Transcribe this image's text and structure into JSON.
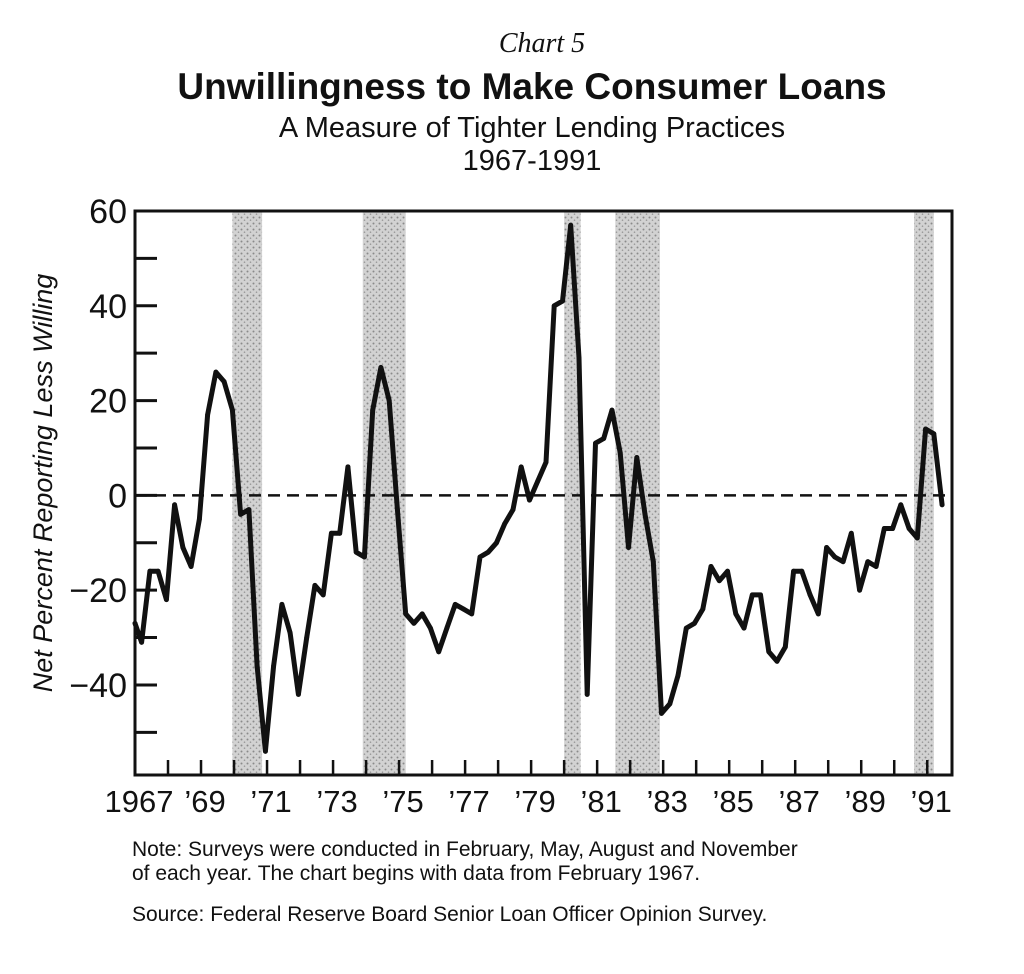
{
  "header": {
    "label": "Chart 5",
    "title": "Unwillingness to Make Consumer Loans",
    "subtitle": "A Measure of Tighter Lending Practices",
    "years": "1967-1991"
  },
  "footer": {
    "note_line1": "Note:  Surveys were conducted in February, May, August and November",
    "note_line2": "of each year. The chart begins with data from February 1967.",
    "source": "Source:  Federal Reserve Board Senior Loan Officer Opinion Survey."
  },
  "colors": {
    "line": "#111111",
    "shading": "#bdbdbd"
  },
  "chart_data": {
    "type": "line",
    "ylabel": "Net Percent Reporting Less Willing",
    "xlabel": "",
    "ylim": [
      -59,
      60
    ],
    "xlim": [
      1967.0,
      1991.75
    ],
    "grid": false,
    "legend": "none",
    "zero_line": "dashed",
    "yticks": [
      {
        "value": 60,
        "label": "60"
      },
      {
        "value": 40,
        "label": "40"
      },
      {
        "value": 20,
        "label": "20"
      },
      {
        "value": 0,
        "label": "0"
      },
      {
        "value": -20,
        "label": "−20"
      },
      {
        "value": -40,
        "label": "−40"
      }
    ],
    "minor_yticks": [
      50,
      30,
      10,
      -10,
      -30,
      -50
    ],
    "xticks": [
      {
        "value": 1967.0,
        "label": "1967"
      },
      {
        "value": 1969.0,
        "label": "’69"
      },
      {
        "value": 1971.0,
        "label": "’71"
      },
      {
        "value": 1973.0,
        "label": "’73"
      },
      {
        "value": 1975.0,
        "label": "’75"
      },
      {
        "value": 1977.0,
        "label": "’77"
      },
      {
        "value": 1979.0,
        "label": "’79"
      },
      {
        "value": 1981.0,
        "label": "’81"
      },
      {
        "value": 1983.0,
        "label": "’83"
      },
      {
        "value": 1985.0,
        "label": "’85"
      },
      {
        "value": 1987.0,
        "label": "’87"
      },
      {
        "value": 1989.0,
        "label": "’89"
      },
      {
        "value": 1991.0,
        "label": "’91"
      }
    ],
    "recessions": [
      [
        1969.95,
        1970.85
      ],
      [
        1973.9,
        1975.2
      ],
      [
        1980.0,
        1980.5
      ],
      [
        1981.55,
        1982.9
      ],
      [
        1990.6,
        1991.2
      ]
    ],
    "series": [
      {
        "values": [
          [
            1967.0,
            -27
          ],
          [
            1967.2,
            -31
          ],
          [
            1967.45,
            -16
          ],
          [
            1967.7,
            -16
          ],
          [
            1967.95,
            -22
          ],
          [
            1968.2,
            -2
          ],
          [
            1968.45,
            -11
          ],
          [
            1968.7,
            -15
          ],
          [
            1968.95,
            -5
          ],
          [
            1969.2,
            17
          ],
          [
            1969.45,
            26
          ],
          [
            1969.7,
            24
          ],
          [
            1969.95,
            18
          ],
          [
            1970.2,
            -4
          ],
          [
            1970.45,
            -3
          ],
          [
            1970.7,
            -36
          ],
          [
            1970.95,
            -54
          ],
          [
            1971.2,
            -36
          ],
          [
            1971.45,
            -23
          ],
          [
            1971.7,
            -29
          ],
          [
            1971.95,
            -42
          ],
          [
            1972.2,
            -30
          ],
          [
            1972.45,
            -19
          ],
          [
            1972.7,
            -21
          ],
          [
            1972.95,
            -8
          ],
          [
            1973.2,
            -8
          ],
          [
            1973.45,
            6
          ],
          [
            1973.7,
            -12
          ],
          [
            1973.95,
            -13
          ],
          [
            1974.2,
            18
          ],
          [
            1974.45,
            27
          ],
          [
            1974.7,
            20
          ],
          [
            1974.95,
            -3
          ],
          [
            1975.2,
            -25
          ],
          [
            1975.45,
            -27
          ],
          [
            1975.7,
            -25
          ],
          [
            1975.95,
            -28
          ],
          [
            1976.2,
            -33
          ],
          [
            1976.45,
            -28
          ],
          [
            1976.7,
            -23
          ],
          [
            1976.95,
            -24
          ],
          [
            1977.2,
            -25
          ],
          [
            1977.45,
            -13
          ],
          [
            1977.7,
            -12
          ],
          [
            1977.95,
            -10
          ],
          [
            1978.2,
            -6
          ],
          [
            1978.45,
            -3
          ],
          [
            1978.7,
            6
          ],
          [
            1978.95,
            -1
          ],
          [
            1979.2,
            3
          ],
          [
            1979.45,
            7
          ],
          [
            1979.7,
            40
          ],
          [
            1979.95,
            41
          ],
          [
            1980.2,
            57
          ],
          [
            1980.45,
            29
          ],
          [
            1980.7,
            -42
          ],
          [
            1980.95,
            11
          ],
          [
            1981.2,
            12
          ],
          [
            1981.45,
            18
          ],
          [
            1981.7,
            9
          ],
          [
            1981.95,
            -11
          ],
          [
            1982.2,
            8
          ],
          [
            1982.45,
            -4
          ],
          [
            1982.7,
            -14
          ],
          [
            1982.95,
            -46
          ],
          [
            1983.2,
            -44
          ],
          [
            1983.45,
            -38
          ],
          [
            1983.7,
            -28
          ],
          [
            1983.95,
            -27
          ],
          [
            1984.2,
            -24
          ],
          [
            1984.45,
            -15
          ],
          [
            1984.7,
            -18
          ],
          [
            1984.95,
            -16
          ],
          [
            1985.2,
            -25
          ],
          [
            1985.45,
            -28
          ],
          [
            1985.7,
            -21
          ],
          [
            1985.95,
            -21
          ],
          [
            1986.2,
            -33
          ],
          [
            1986.45,
            -35
          ],
          [
            1986.7,
            -32
          ],
          [
            1986.95,
            -16
          ],
          [
            1987.2,
            -16
          ],
          [
            1987.45,
            -21
          ],
          [
            1987.7,
            -25
          ],
          [
            1987.95,
            -11
          ],
          [
            1988.2,
            -13
          ],
          [
            1988.45,
            -14
          ],
          [
            1988.7,
            -8
          ],
          [
            1988.95,
            -20
          ],
          [
            1989.2,
            -14
          ],
          [
            1989.45,
            -15
          ],
          [
            1989.7,
            -7
          ],
          [
            1989.95,
            -7
          ],
          [
            1990.2,
            -2
          ],
          [
            1990.45,
            -7
          ],
          [
            1990.7,
            -9
          ],
          [
            1990.95,
            14
          ],
          [
            1991.2,
            13
          ],
          [
            1991.45,
            -2
          ]
        ]
      }
    ]
  }
}
